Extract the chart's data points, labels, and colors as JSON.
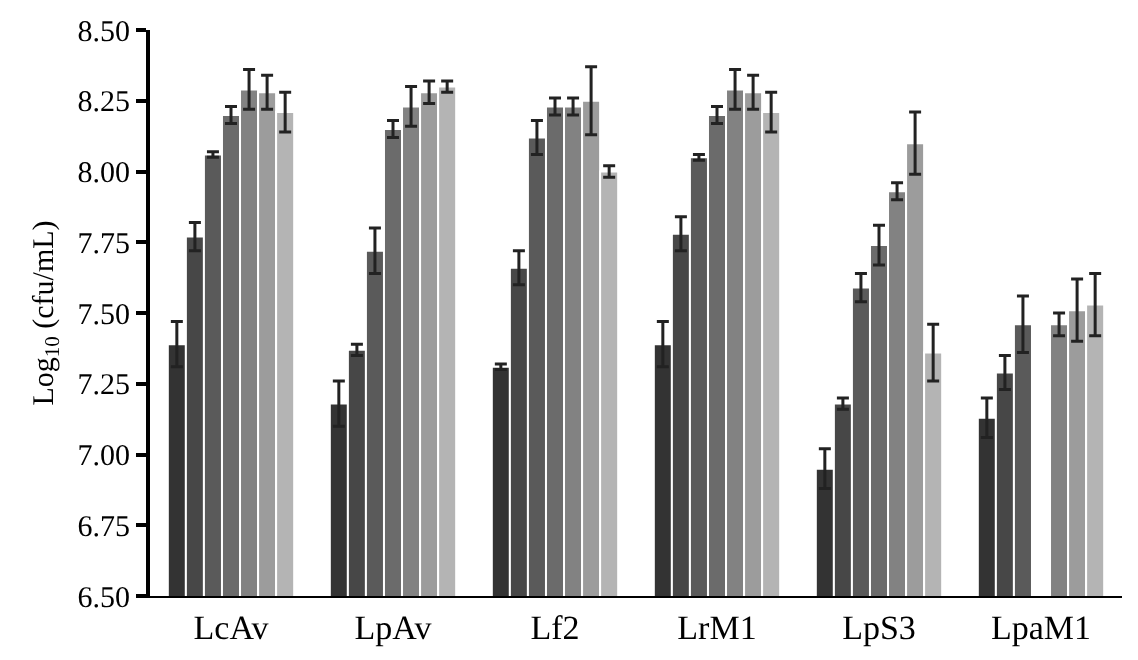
{
  "chart_data": {
    "type": "bar",
    "ylabel": "Log$_{10}$ (cfu/mL)",
    "categories": [
      "LcAv",
      "LpAv",
      "Lf2",
      "LrM1",
      "LpS3",
      "LpaM1"
    ],
    "series": [
      {
        "color": "#333333",
        "values": [
          7.39,
          7.18,
          7.31,
          7.39,
          6.95,
          7.13
        ],
        "errors": [
          0.08,
          0.08,
          0.01,
          0.08,
          0.07,
          0.07
        ]
      },
      {
        "color": "#474747",
        "values": [
          7.77,
          7.37,
          7.66,
          7.78,
          7.18,
          7.29
        ],
        "errors": [
          0.05,
          0.02,
          0.06,
          0.06,
          0.02,
          0.06
        ]
      },
      {
        "color": "#5a5a5a",
        "values": [
          8.06,
          7.72,
          8.12,
          8.05,
          7.59,
          7.46
        ],
        "errors": [
          0.01,
          0.08,
          0.06,
          0.01,
          0.05,
          0.1
        ]
      },
      {
        "color": "#6b6b6b",
        "values": [
          8.2,
          8.15,
          8.23,
          8.2,
          7.74,
          null
        ],
        "errors": [
          0.03,
          0.03,
          0.03,
          0.03,
          0.07,
          null
        ]
      },
      {
        "color": "#828282",
        "values": [
          8.29,
          8.23,
          8.23,
          8.29,
          7.93,
          7.46
        ],
        "errors": [
          0.07,
          0.07,
          0.03,
          0.07,
          0.03,
          0.04
        ]
      },
      {
        "color": "#9c9c9c",
        "values": [
          8.28,
          8.28,
          8.25,
          8.28,
          8.1,
          7.51
        ],
        "errors": [
          0.06,
          0.04,
          0.12,
          0.06,
          0.11,
          0.11
        ]
      },
      {
        "color": "#b4b4b4",
        "values": [
          8.21,
          8.3,
          8.0,
          8.21,
          7.36,
          7.53
        ],
        "errors": [
          0.07,
          0.02,
          0.02,
          0.07,
          0.1,
          0.11
        ]
      }
    ],
    "ylim": [
      6.5,
      8.5
    ],
    "yticks": [
      {
        "value": 6.5,
        "label": "6.50"
      },
      {
        "value": 6.75,
        "label": "6.75"
      },
      {
        "value": 7.0,
        "label": "7.00"
      },
      {
        "value": 7.25,
        "label": "7.25"
      },
      {
        "value": 7.5,
        "label": "7.50"
      },
      {
        "value": 7.75,
        "label": "7.75"
      },
      {
        "value": 8.0,
        "label": "8.00"
      },
      {
        "value": 8.25,
        "label": "8.25"
      },
      {
        "value": 8.5,
        "label": "8.50"
      }
    ],
    "grid": false,
    "legend": false
  }
}
